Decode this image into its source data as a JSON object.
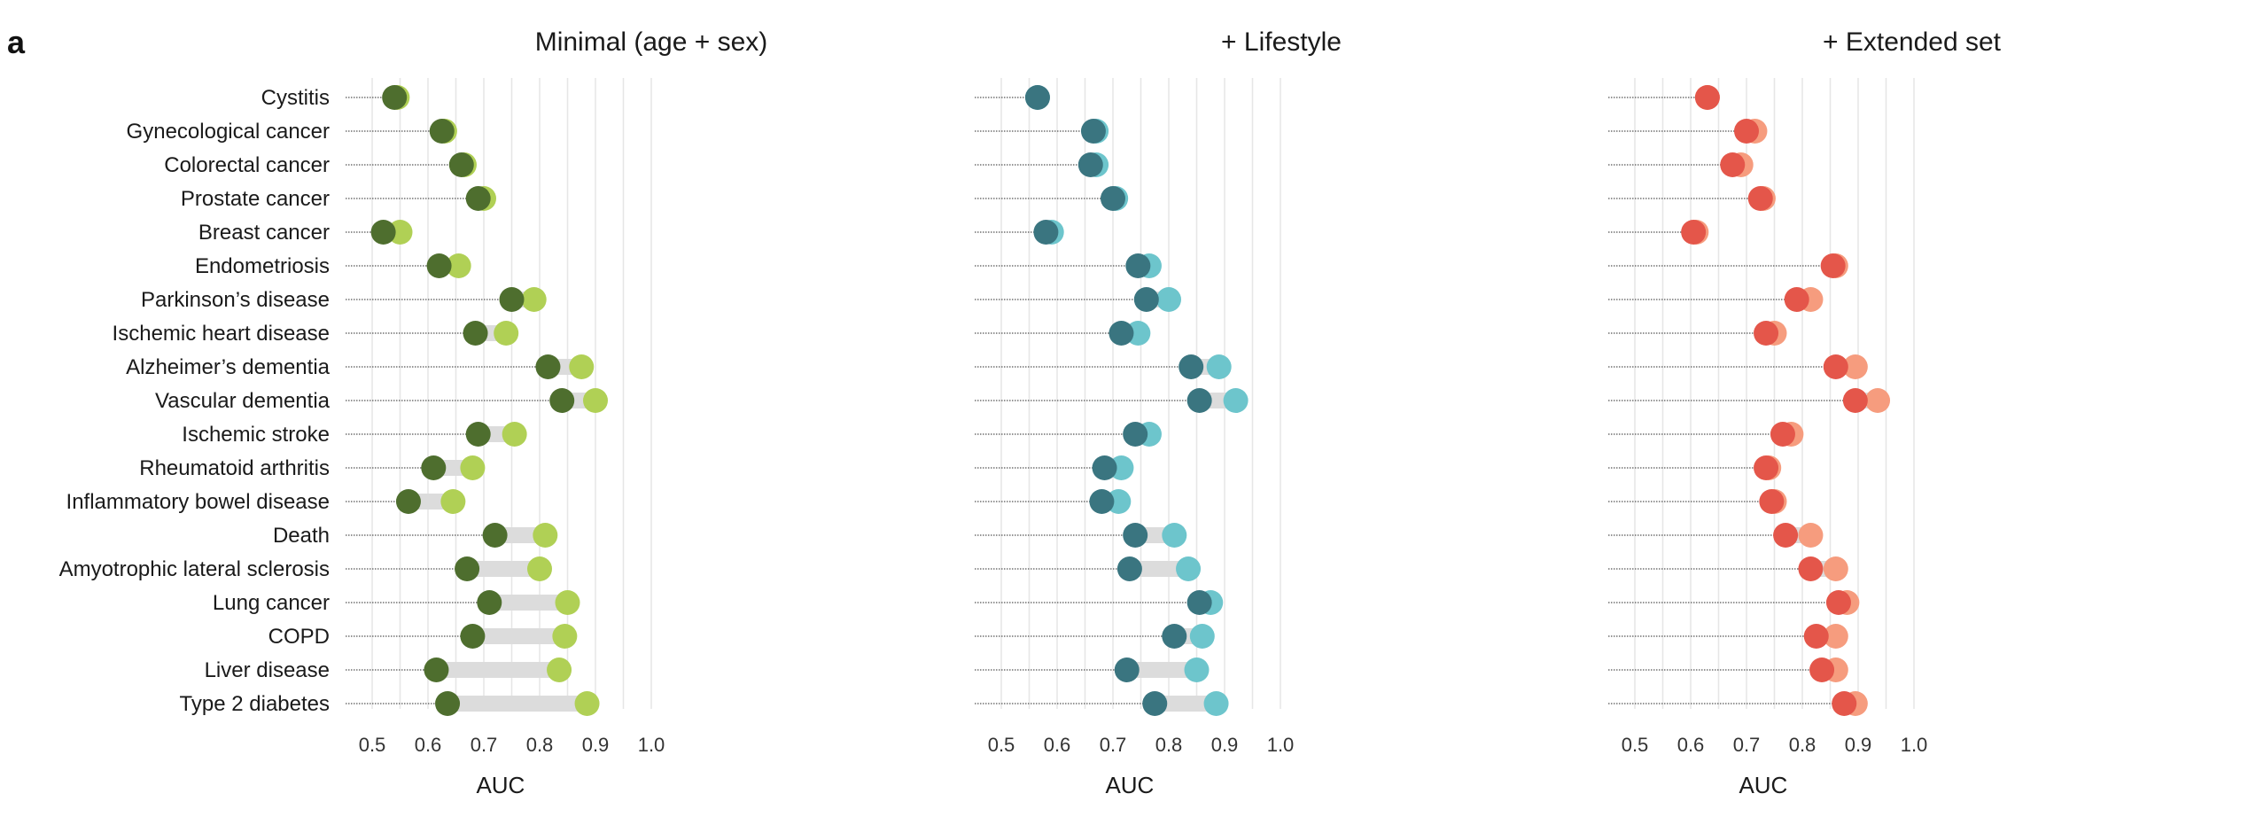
{
  "panel_label": "a",
  "chart_data": {
    "type": "dumbbell",
    "categories": [
      "Cystitis",
      "Gynecological cancer",
      "Colorectal cancer",
      "Prostate cancer",
      "Breast cancer",
      "Endometriosis",
      "Parkinson’s disease",
      "Ischemic heart disease",
      "Alzheimer’s dementia",
      "Vascular dementia",
      "Ischemic stroke",
      "Rheumatoid arthritis",
      "Inflammatory bowel disease",
      "Death",
      "Amyotrophic lateral sclerosis",
      "Lung cancer",
      "COPD",
      "Liver disease",
      "Type 2 diabetes"
    ],
    "xlabel": "AUC",
    "xlim": [
      0.47,
      1.0
    ],
    "xticks": [
      "0.5",
      "0.6",
      "0.7",
      "0.8",
      "0.9",
      "1.0"
    ],
    "grid": true,
    "panels": [
      {
        "title": "Minimal (age + sex)",
        "colors": {
          "low": "#4e6e2e",
          "high": "#b0d055"
        },
        "low": [
          0.54,
          0.625,
          0.66,
          0.69,
          0.52,
          0.62,
          0.75,
          0.685,
          0.815,
          0.84,
          0.69,
          0.61,
          0.565,
          0.72,
          0.67,
          0.71,
          0.68,
          0.615,
          0.635
        ],
        "high": [
          0.545,
          0.63,
          0.665,
          0.7,
          0.55,
          0.655,
          0.79,
          0.74,
          0.875,
          0.9,
          0.755,
          0.68,
          0.645,
          0.81,
          0.8,
          0.85,
          0.845,
          0.835,
          0.885
        ]
      },
      {
        "title": "+ Lifestyle",
        "colors": {
          "low": "#3a7580",
          "high": "#6dc5cc"
        },
        "low": [
          0.565,
          0.665,
          0.66,
          0.7,
          0.58,
          0.745,
          0.76,
          0.715,
          0.84,
          0.855,
          0.74,
          0.685,
          0.68,
          0.74,
          0.73,
          0.855,
          0.81,
          0.725,
          0.775
        ],
        "high": [
          0.565,
          0.67,
          0.67,
          0.705,
          0.59,
          0.765,
          0.8,
          0.745,
          0.89,
          0.92,
          0.765,
          0.715,
          0.71,
          0.81,
          0.835,
          0.875,
          0.86,
          0.85,
          0.885
        ]
      },
      {
        "title": "+ Extended set",
        "colors": {
          "low": "#e4564a",
          "high": "#f69c7e"
        },
        "low": [
          0.63,
          0.7,
          0.675,
          0.725,
          0.605,
          0.855,
          0.79,
          0.735,
          0.86,
          0.895,
          0.765,
          0.735,
          0.745,
          0.77,
          0.815,
          0.865,
          0.825,
          0.835,
          0.875
        ],
        "high": [
          0.63,
          0.715,
          0.69,
          0.73,
          0.61,
          0.86,
          0.815,
          0.75,
          0.895,
          0.935,
          0.78,
          0.74,
          0.75,
          0.815,
          0.86,
          0.88,
          0.86,
          0.86,
          0.895
        ]
      }
    ]
  }
}
